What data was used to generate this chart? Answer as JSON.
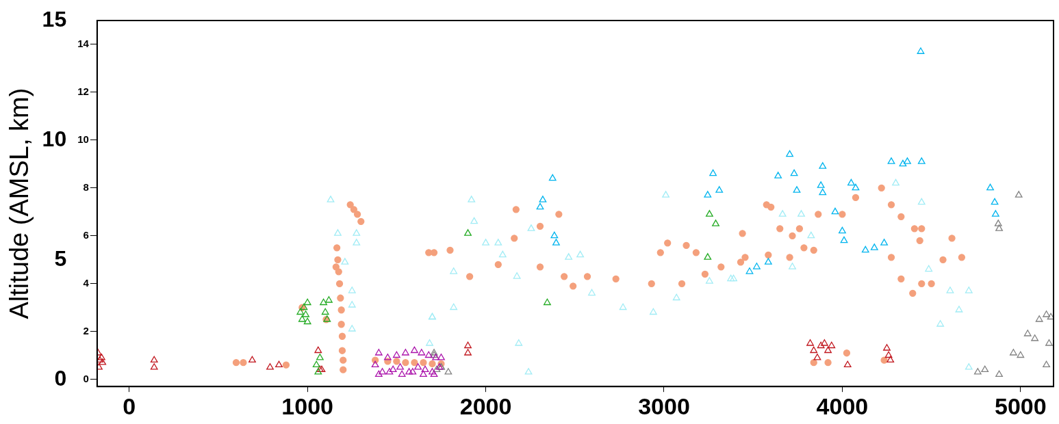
{
  "chart_data": {
    "type": "scatter",
    "ylabel": "Altitude (AMSL, km)",
    "xlim": [
      -180,
      5185
    ],
    "xticks": [
      0,
      1000,
      2000,
      3000,
      4000,
      5000
    ],
    "ylim": [
      -0.3,
      15
    ],
    "yticks": [
      0,
      5,
      10,
      15
    ],
    "y2lim": [
      -0.3,
      15
    ],
    "y2ticks": [
      0,
      2,
      4,
      6,
      8,
      10,
      12,
      14
    ],
    "grid": false,
    "legend": false,
    "series": [
      {
        "color": "#a0ecf5",
        "marker": "triangle",
        "x": [
          1130,
          1170,
          1210,
          1250,
          1250,
          1250,
          1275,
          1275,
          1700,
          1685,
          1700,
          1820,
          1820,
          1920,
          1935,
          2000,
          2070,
          2095,
          2175,
          2185,
          2240,
          2255,
          2465,
          2530,
          2595,
          2770,
          2940,
          3070,
          3010,
          3255,
          3390,
          3375,
          3665,
          3770,
          3720,
          3825,
          4300,
          4445,
          4485,
          4550,
          4605,
          4710,
          4655,
          4710
        ],
        "values": [
          7.5,
          6.1,
          4.9,
          3.7,
          3.1,
          2.1,
          6.1,
          5.7,
          2.6,
          1.5,
          2.6,
          3.0,
          4.5,
          7.5,
          6.6,
          5.7,
          5.7,
          5.2,
          4.3,
          1.5,
          0.3,
          6.3,
          5.1,
          5.2,
          3.6,
          3.0,
          2.8,
          3.4,
          7.7,
          4.1,
          4.2,
          4.2,
          6.9,
          6.9,
          4.7,
          6.0,
          8.2,
          7.4,
          4.6,
          2.3,
          3.7,
          3.7,
          2.9,
          0.5
        ]
      },
      {
        "color": "#00b4ee",
        "marker": "triangle",
        "x": [
          2375,
          2320,
          2305,
          2395,
          2385,
          3275,
          3310,
          3245,
          3705,
          3730,
          3745,
          3640,
          3890,
          3880,
          3890,
          4050,
          4075,
          4365,
          4340,
          4445,
          4275,
          3960,
          4000,
          4010,
          4180,
          4130,
          4235,
          3520,
          3585,
          3480,
          4830,
          4855,
          4860,
          4440
        ],
        "values": [
          8.4,
          7.5,
          7.2,
          5.7,
          6.0,
          8.6,
          7.9,
          7.7,
          9.4,
          8.6,
          7.9,
          8.5,
          8.9,
          8.1,
          7.8,
          8.2,
          8.0,
          9.1,
          9.0,
          9.1,
          9.1,
          7.0,
          6.2,
          5.8,
          5.5,
          5.4,
          5.7,
          4.7,
          4.9,
          4.5,
          8.0,
          7.4,
          6.9,
          13.7
        ]
      },
      {
        "color": "#aa11aa",
        "marker": "triangle",
        "x": [
          1380,
          1400,
          1420,
          1450,
          1480,
          1500,
          1520,
          1550,
          1570,
          1600,
          1620,
          1640,
          1660,
          1680,
          1700,
          1720,
          1740,
          1400,
          1460,
          1530,
          1590,
          1650,
          1710,
          1750
        ],
        "values": [
          0.6,
          1.1,
          0.3,
          0.9,
          0.4,
          1.0,
          0.5,
          1.1,
          0.3,
          1.2,
          0.5,
          1.1,
          0.4,
          1.0,
          0.3,
          0.9,
          0.5,
          0.2,
          0.3,
          0.2,
          0.3,
          0.2,
          0.2,
          0.9
        ]
      },
      {
        "color": "#808080",
        "marker": "triangle",
        "x": [
          1710,
          1725,
          1750,
          1710,
          1750,
          1790,
          4760,
          4800,
          4880,
          4960,
          5000,
          5040,
          5080,
          5105,
          5145,
          5170,
          5145,
          5160,
          4990,
          4880,
          4875
        ],
        "values": [
          1.0,
          0.4,
          0.5,
          1.1,
          0.5,
          0.3,
          0.3,
          0.4,
          0.2,
          1.1,
          1.0,
          1.9,
          1.7,
          2.5,
          2.7,
          2.6,
          0.6,
          1.5,
          7.7,
          6.3,
          6.5
        ]
      },
      {
        "color": "#22aa22",
        "marker": "triangle",
        "x": [
          960,
          970,
          980,
          990,
          1000,
          1000,
          1090,
          1100,
          1110,
          1120,
          1050,
          1060,
          1070,
          1900,
          2345,
          3255,
          3290,
          3245
        ],
        "values": [
          2.8,
          2.5,
          3.0,
          2.7,
          2.4,
          3.2,
          3.2,
          2.8,
          2.5,
          3.3,
          0.6,
          0.3,
          0.9,
          6.1,
          3.2,
          6.9,
          6.5,
          5.1
        ]
      },
      {
        "color": "#c0141c",
        "marker": "triangle",
        "x": [
          -175,
          -165,
          -155,
          -170,
          -150,
          140,
          140,
          690,
          790,
          840,
          1060,
          1070,
          1080,
          1900,
          1900,
          3820,
          3840,
          3860,
          3880,
          3900,
          3920,
          3940,
          4030,
          4250,
          4260,
          4270
        ],
        "values": [
          1.1,
          0.8,
          0.9,
          0.5,
          0.7,
          0.5,
          0.8,
          0.8,
          0.5,
          0.6,
          1.2,
          0.4,
          0.4,
          1.4,
          1.1,
          1.5,
          1.2,
          0.9,
          1.4,
          1.5,
          1.2,
          1.4,
          0.6,
          1.3,
          1.0,
          0.8
        ]
      },
      {
        "color": "#f4a07c",
        "marker": "circle",
        "x": [
          600,
          640,
          880,
          970,
          1105,
          1160,
          1165,
          1170,
          1175,
          1180,
          1185,
          1190,
          1190,
          1195,
          1195,
          1200,
          1200,
          1240,
          1260,
          1280,
          1300,
          1380,
          1450,
          1500,
          1550,
          1600,
          1650,
          1700,
          1750,
          1680,
          1710,
          1800,
          1910,
          2070,
          2160,
          2305,
          2170,
          2305,
          2410,
          2440,
          2490,
          2570,
          2730,
          2930,
          3100,
          3230,
          3320,
          3455,
          2980,
          3020,
          3125,
          3180,
          3430,
          3585,
          3705,
          3785,
          3840,
          3440,
          3575,
          3600,
          3650,
          3720,
          3760,
          3865,
          4000,
          4075,
          4220,
          4275,
          4330,
          4405,
          4445,
          4435,
          4275,
          4330,
          4395,
          4445,
          4500,
          4565,
          4615,
          4670,
          3840,
          3920,
          4025,
          4235
        ],
        "values": [
          0.7,
          0.7,
          0.6,
          3.0,
          2.5,
          4.7,
          5.5,
          5.0,
          4.5,
          4.0,
          3.4,
          2.9,
          2.3,
          1.8,
          1.2,
          0.8,
          0.4,
          7.3,
          7.1,
          6.9,
          6.6,
          0.8,
          0.75,
          0.75,
          0.7,
          0.7,
          0.7,
          0.65,
          0.65,
          5.3,
          5.3,
          5.4,
          4.3,
          4.8,
          5.9,
          4.7,
          7.1,
          6.4,
          6.9,
          4.3,
          3.9,
          4.3,
          4.2,
          4.0,
          4.0,
          4.4,
          4.7,
          5.1,
          5.3,
          5.7,
          5.6,
          5.3,
          4.9,
          5.2,
          5.1,
          5.5,
          5.4,
          6.1,
          7.3,
          7.2,
          6.3,
          6.0,
          6.3,
          6.9,
          6.9,
          7.6,
          8.0,
          7.3,
          6.8,
          6.3,
          6.3,
          5.8,
          5.1,
          4.2,
          3.6,
          4.0,
          4.0,
          5.0,
          5.9,
          5.1,
          0.7,
          0.7,
          1.1,
          0.8
        ]
      }
    ]
  }
}
